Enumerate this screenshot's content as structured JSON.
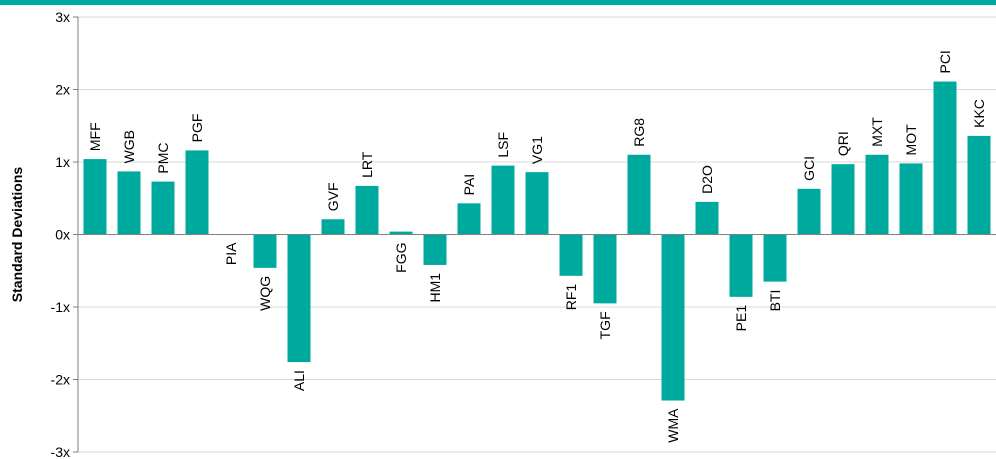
{
  "colors": {
    "accent": "#00A99D",
    "grid": "#d9d9d9",
    "axis": "#808080"
  },
  "chart_data": {
    "type": "bar",
    "ylabel": "Standard Deviations",
    "xlabel": "",
    "ylim": [
      -3,
      3
    ],
    "y_ticks": [
      "3x",
      "2x",
      "1x",
      "0x",
      "-1x",
      "-2x",
      "-3x"
    ],
    "grid": true,
    "categories": [
      "MFF",
      "WGB",
      "PMC",
      "PGF",
      "PIA",
      "WQG",
      "ALI",
      "GVF",
      "LRT",
      "FGG",
      "HM1",
      "PAI",
      "LSF",
      "VG1",
      "RF1",
      "TGF",
      "RG8",
      "WMA",
      "D2O",
      "PE1",
      "BTI",
      "GCI",
      "QRI",
      "MXT",
      "MOT",
      "PCI",
      "KKC"
    ],
    "values": [
      1.04,
      0.87,
      0.73,
      1.16,
      0.0,
      -0.46,
      -1.76,
      0.21,
      0.67,
      0.04,
      -0.42,
      0.43,
      0.95,
      0.86,
      -0.57,
      -0.95,
      1.1,
      -2.29,
      0.45,
      -0.86,
      -0.65,
      0.63,
      0.97,
      1.1,
      0.98,
      2.11,
      1.36
    ]
  }
}
